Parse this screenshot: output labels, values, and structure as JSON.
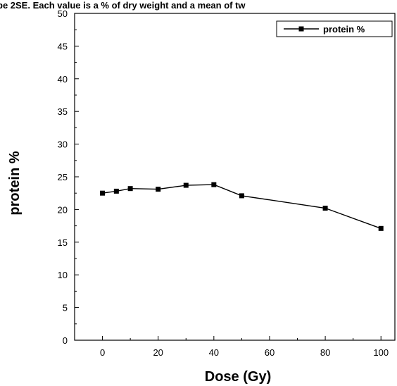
{
  "chart_data": {
    "type": "line",
    "title": "be 2SE. Each value is a % of dry weight and a mean of tw",
    "xlabel": "Dose (Gy)",
    "ylabel": "protein %",
    "xlim": [
      -10,
      105
    ],
    "ylim": [
      0,
      50
    ],
    "x_ticks": [
      0,
      20,
      40,
      60,
      80,
      100
    ],
    "y_ticks": [
      0,
      5,
      10,
      15,
      20,
      25,
      30,
      35,
      40,
      45,
      50
    ],
    "legend_position": "top-right",
    "grid": false,
    "series": [
      {
        "name": "protein %",
        "marker": "square",
        "color": "#000000",
        "x": [
          0,
          5,
          10,
          20,
          30,
          40,
          50,
          80,
          100
        ],
        "y": [
          22.5,
          22.8,
          23.2,
          23.1,
          23.7,
          23.8,
          22.1,
          20.2,
          17.1
        ]
      }
    ]
  }
}
